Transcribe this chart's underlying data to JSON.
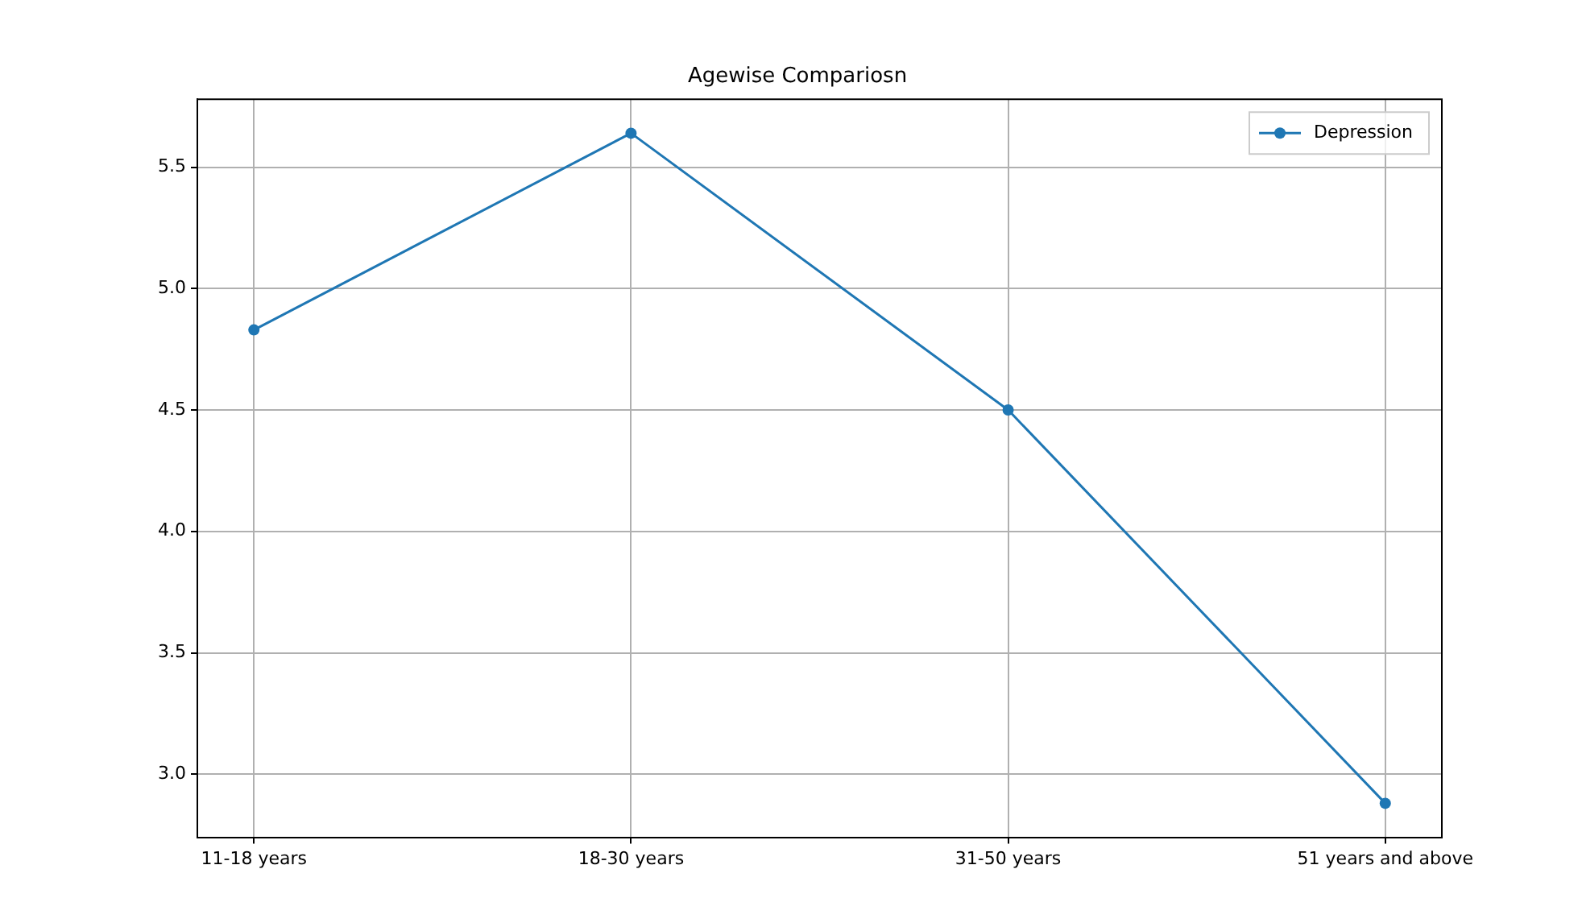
{
  "chart_data": {
    "type": "line",
    "title": "Agewise Compariosn",
    "categories": [
      "11-18 years",
      "18-30 years",
      "31-50 years",
      "51 years and above"
    ],
    "series": [
      {
        "name": "Depression",
        "color": "#1f77b4",
        "values": [
          4.83,
          5.64,
          4.5,
          2.88
        ]
      }
    ],
    "ylim": [
      2.74,
      5.78
    ],
    "yticks": [
      {
        "value": 3,
        "label": "3.0"
      },
      3.5,
      {
        "value": 4,
        "label": "4.0"
      },
      4.5,
      {
        "value": 5,
        "label": "5.0"
      },
      5.5
    ],
    "grid": true,
    "legend": "top right",
    "marker": "circle",
    "line_style": "solid"
  }
}
